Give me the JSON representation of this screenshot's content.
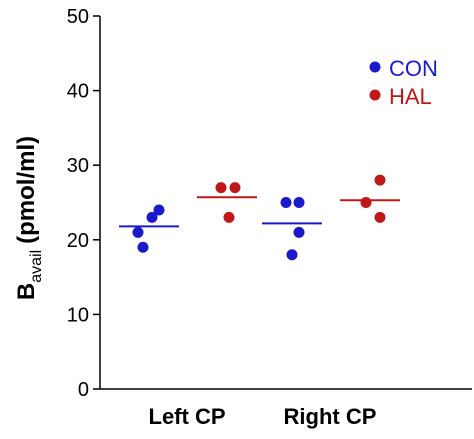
{
  "chart_data": {
    "type": "scatter",
    "title": "",
    "xlabel": "",
    "ylabel_main": "B",
    "ylabel_sub": "avail",
    "ylabel_unit": "(pmol/ml)",
    "ylim": [
      0,
      50
    ],
    "yticks": [
      "0",
      "10",
      "20",
      "30",
      "40",
      "50"
    ],
    "categories": [
      "Left CP",
      "Right CP"
    ],
    "legend_position": "top-right",
    "grid": false,
    "series": [
      {
        "name": "CON",
        "color": "#1a1acc",
        "groups": [
          {
            "category": "Left CP",
            "points": [
              21,
              23,
              24,
              19
            ],
            "mean": 21.8
          },
          {
            "category": "Right CP",
            "points": [
              25,
              25,
              21,
              18
            ],
            "mean": 22.2
          }
        ]
      },
      {
        "name": "HAL",
        "color": "#c01818",
        "groups": [
          {
            "category": "Left CP",
            "points": [
              27,
              27,
              23
            ],
            "mean": 25.7
          },
          {
            "category": "Right CP",
            "points": [
              25,
              28,
              23
            ],
            "mean": 25.3
          }
        ]
      }
    ]
  }
}
